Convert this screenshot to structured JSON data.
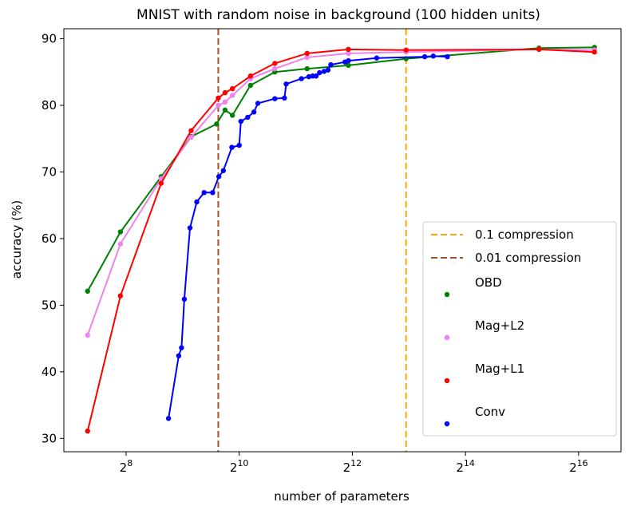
{
  "chart_data": {
    "type": "line",
    "title": "MNIST with random noise in background (100 hidden units)",
    "xlabel": "number of parameters",
    "ylabel": "accuracy (%)",
    "x_scale": "log2",
    "xlim_log2": [
      6.9,
      16.75
    ],
    "ylim": [
      28,
      91.5
    ],
    "x_ticks": [
      {
        "base": "2",
        "exp": "8",
        "log2": 8
      },
      {
        "base": "2",
        "exp": "10",
        "log2": 10
      },
      {
        "base": "2",
        "exp": "12",
        "log2": 12
      },
      {
        "base": "2",
        "exp": "14",
        "log2": 14
      },
      {
        "base": "2",
        "exp": "16",
        "log2": 16
      }
    ],
    "y_ticks": [
      30,
      40,
      50,
      60,
      70,
      80,
      90
    ],
    "legend_position": "lower-right",
    "vlines": [
      {
        "name": "0.1 compression",
        "x_log2": 12.95,
        "color": "#ffa500",
        "style": "dashed"
      },
      {
        "name": "0.01 compression",
        "x_log2": 9.63,
        "color": "#a0522d",
        "style": "dashed"
      }
    ],
    "series": [
      {
        "name": "OBD",
        "color": "#008000",
        "points": [
          [
            7.32,
            52.1
          ],
          [
            7.9,
            61.0
          ],
          [
            8.62,
            69.3
          ],
          [
            9.15,
            75.3
          ],
          [
            9.6,
            77.2
          ],
          [
            9.75,
            79.3
          ],
          [
            9.88,
            78.5
          ],
          [
            10.2,
            83.0
          ],
          [
            10.63,
            85.0
          ],
          [
            11.2,
            85.5
          ],
          [
            11.93,
            86.0
          ],
          [
            12.95,
            87.0
          ],
          [
            15.3,
            88.6
          ],
          [
            16.28,
            88.7
          ]
        ]
      },
      {
        "name": "Mag+L2",
        "color": "#ee82ee",
        "points": [
          [
            7.32,
            45.5
          ],
          [
            7.9,
            59.2
          ],
          [
            8.62,
            69.0
          ],
          [
            9.15,
            75.2
          ],
          [
            9.63,
            80.0
          ],
          [
            9.75,
            80.5
          ],
          [
            9.88,
            81.5
          ],
          [
            10.2,
            84.0
          ],
          [
            10.63,
            85.5
          ],
          [
            11.2,
            87.2
          ],
          [
            11.93,
            87.8
          ],
          [
            12.95,
            88.0
          ],
          [
            15.3,
            88.4
          ],
          [
            16.28,
            88.3
          ]
        ]
      },
      {
        "name": "Mag+L1",
        "color": "#ff0000",
        "points": [
          [
            7.32,
            31.1
          ],
          [
            7.9,
            51.4
          ],
          [
            8.62,
            68.3
          ],
          [
            9.15,
            76.2
          ],
          [
            9.63,
            81.1
          ],
          [
            9.75,
            81.9
          ],
          [
            9.88,
            82.5
          ],
          [
            10.2,
            84.4
          ],
          [
            10.63,
            86.3
          ],
          [
            11.2,
            87.8
          ],
          [
            11.93,
            88.4
          ],
          [
            12.95,
            88.3
          ],
          [
            15.3,
            88.4
          ],
          [
            16.28,
            88.0
          ]
        ]
      },
      {
        "name": "Conv",
        "color": "#0000ff",
        "points": [
          [
            8.75,
            33.0
          ],
          [
            8.93,
            42.4
          ],
          [
            8.98,
            43.6
          ],
          [
            9.03,
            50.9
          ],
          [
            9.13,
            61.6
          ],
          [
            9.25,
            65.5
          ],
          [
            9.38,
            66.9
          ],
          [
            9.53,
            66.9
          ],
          [
            9.64,
            69.3
          ],
          [
            9.72,
            70.2
          ],
          [
            9.87,
            73.7
          ],
          [
            10.0,
            74.0
          ],
          [
            10.03,
            77.6
          ],
          [
            10.15,
            78.2
          ],
          [
            10.26,
            79.0
          ],
          [
            10.33,
            80.3
          ],
          [
            10.63,
            81.0
          ],
          [
            10.8,
            81.1
          ],
          [
            10.83,
            83.2
          ],
          [
            11.1,
            84.0
          ],
          [
            11.23,
            84.3
          ],
          [
            11.3,
            84.4
          ],
          [
            11.36,
            84.4
          ],
          [
            11.42,
            84.9
          ],
          [
            11.5,
            85.1
          ],
          [
            11.57,
            85.3
          ],
          [
            11.62,
            86.1
          ],
          [
            11.87,
            86.5
          ],
          [
            11.93,
            86.7
          ],
          [
            12.43,
            87.1
          ],
          [
            13.28,
            87.3
          ],
          [
            13.43,
            87.4
          ],
          [
            13.68,
            87.3
          ]
        ]
      }
    ]
  }
}
